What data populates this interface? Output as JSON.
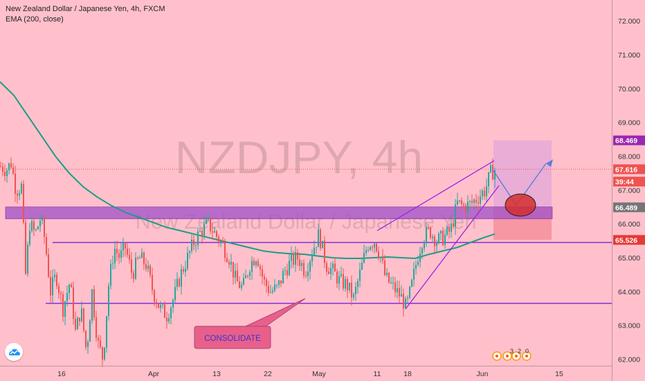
{
  "header": {
    "title": "New Zealand Dollar / Japanese Yen, 4h, FXCM",
    "indicator": "EMA (200, close)"
  },
  "watermark": {
    "symbol": "NZDJPY, 4h",
    "name": "New Zealand Dollar / Japanese Yen"
  },
  "annotation": {
    "label": "CONSOLIDATE"
  },
  "indicator_labels": [
    "3",
    "2",
    "0"
  ],
  "colors": {
    "background": "#ffc0cb",
    "candle_up": "#26a69a",
    "candle_down": "#ef5350",
    "ema": "#1e9b86",
    "trendline": "#9b1fe8",
    "level": "#7b1fe0",
    "zone": "#a050c8",
    "arrow": "#5b7fd4",
    "target_box": "#e3a8d8",
    "stop_box": "#f48c98",
    "callout": "#e8608a"
  },
  "chart_data": {
    "type": "candlestick",
    "title": "New Zealand Dollar / Japanese Yen, 4h, FXCM",
    "ylim": [
      61.9,
      72.6
    ],
    "x_ticks": [
      "16",
      "Apr",
      "13",
      "22",
      "May",
      "11",
      "18",
      "Jun",
      "15"
    ],
    "y_ticks": [
      "62.000",
      "63.000",
      "64.000",
      "65.000",
      "66.000",
      "67.000",
      "68.000",
      "69.000",
      "70.000",
      "71.000",
      "72.000"
    ],
    "price_labels": [
      {
        "text": "68.469",
        "value": 68.469,
        "color": "#9c27b0"
      },
      {
        "text": "67.616",
        "value": 67.616,
        "color": "#ef5350"
      },
      {
        "text": "39:44",
        "value": 67.25,
        "color": "#ef5350"
      },
      {
        "text": "66.489",
        "value": 66.489,
        "color": "#757575"
      },
      {
        "text": "65.526",
        "value": 65.526,
        "color": "#e53935"
      }
    ],
    "current_price": 67.616,
    "support_levels": [
      65.45,
      63.65
    ],
    "resistance_zone": [
      66.15,
      66.5
    ],
    "ema200": [
      [
        0,
        70.2
      ],
      [
        20,
        69.8
      ],
      [
        40,
        69.2
      ],
      [
        60,
        68.6
      ],
      [
        80,
        68.0
      ],
      [
        100,
        67.5
      ],
      [
        120,
        67.1
      ],
      [
        140,
        66.8
      ],
      [
        160,
        66.55
      ],
      [
        180,
        66.35
      ],
      [
        200,
        66.2
      ],
      [
        220,
        66.05
      ],
      [
        240,
        65.9
      ],
      [
        260,
        65.8
      ],
      [
        280,
        65.7
      ],
      [
        300,
        65.6
      ],
      [
        320,
        65.5
      ],
      [
        340,
        65.4
      ],
      [
        360,
        65.3
      ],
      [
        380,
        65.2
      ],
      [
        400,
        65.15
      ],
      [
        420,
        65.12
      ],
      [
        440,
        65.1
      ],
      [
        460,
        65.05
      ],
      [
        480,
        65.0
      ],
      [
        500,
        64.98
      ],
      [
        520,
        64.98
      ],
      [
        540,
        65.0
      ],
      [
        560,
        65.02
      ],
      [
        580,
        65.0
      ],
      [
        600,
        64.98
      ],
      [
        620,
        65.1
      ],
      [
        640,
        65.2
      ],
      [
        660,
        65.3
      ],
      [
        680,
        65.45
      ],
      [
        700,
        65.6
      ],
      [
        715,
        65.7
      ]
    ],
    "price_path": [
      [
        0,
        67.7
      ],
      [
        8,
        67.6
      ],
      [
        15,
        67.8
      ],
      [
        22,
        67.0
      ],
      [
        30,
        67.1
      ],
      [
        36,
        64.5
      ],
      [
        42,
        66.0
      ],
      [
        50,
        65.7
      ],
      [
        58,
        66.2
      ],
      [
        64,
        65.5
      ],
      [
        72,
        64.0
      ],
      [
        80,
        64.5
      ],
      [
        90,
        63.5
      ],
      [
        100,
        64.3
      ],
      [
        108,
        62.8
      ],
      [
        116,
        63.5
      ],
      [
        124,
        62.2
      ],
      [
        132,
        64.0
      ],
      [
        140,
        62.5
      ],
      [
        148,
        62.0
      ],
      [
        156,
        64.2
      ],
      [
        164,
        65.3
      ],
      [
        172,
        65.0
      ],
      [
        180,
        65.3
      ],
      [
        190,
        64.5
      ],
      [
        200,
        65.0
      ],
      [
        210,
        64.8
      ],
      [
        220,
        64.0
      ],
      [
        230,
        63.5
      ],
      [
        240,
        63.3
      ],
      [
        250,
        63.8
      ],
      [
        260,
        64.5
      ],
      [
        270,
        65.0
      ],
      [
        280,
        65.5
      ],
      [
        290,
        65.8
      ],
      [
        300,
        66.0
      ],
      [
        310,
        65.7
      ],
      [
        320,
        65.4
      ],
      [
        330,
        65.0
      ],
      [
        340,
        64.3
      ],
      [
        350,
        64.1
      ],
      [
        360,
        64.8
      ],
      [
        370,
        65.1
      ],
      [
        380,
        64.3
      ],
      [
        390,
        64.0
      ],
      [
        400,
        64.1
      ],
      [
        410,
        64.6
      ],
      [
        420,
        64.9
      ],
      [
        430,
        65.0
      ],
      [
        440,
        64.6
      ],
      [
        450,
        65.2
      ],
      [
        460,
        65.7
      ],
      [
        470,
        64.8
      ],
      [
        480,
        64.6
      ],
      [
        490,
        64.3
      ],
      [
        500,
        64.2
      ],
      [
        510,
        63.8
      ],
      [
        520,
        64.6
      ],
      [
        530,
        65.4
      ],
      [
        540,
        65.5
      ],
      [
        548,
        65.1
      ],
      [
        556,
        64.4
      ],
      [
        564,
        64.2
      ],
      [
        572,
        64.0
      ],
      [
        580,
        63.8
      ],
      [
        586,
        63.5
      ],
      [
        594,
        64.2
      ],
      [
        602,
        65.0
      ],
      [
        610,
        65.6
      ],
      [
        620,
        65.8
      ],
      [
        630,
        65.5
      ],
      [
        640,
        65.6
      ],
      [
        650,
        65.8
      ],
      [
        660,
        66.6
      ],
      [
        670,
        66.5
      ],
      [
        680,
        66.6
      ],
      [
        690,
        66.8
      ],
      [
        700,
        67.0
      ],
      [
        708,
        67.5
      ],
      [
        714,
        67.6
      ]
    ],
    "x_tick_positions": [
      89,
      222,
      313,
      387,
      461,
      545,
      589,
      697,
      808
    ]
  }
}
